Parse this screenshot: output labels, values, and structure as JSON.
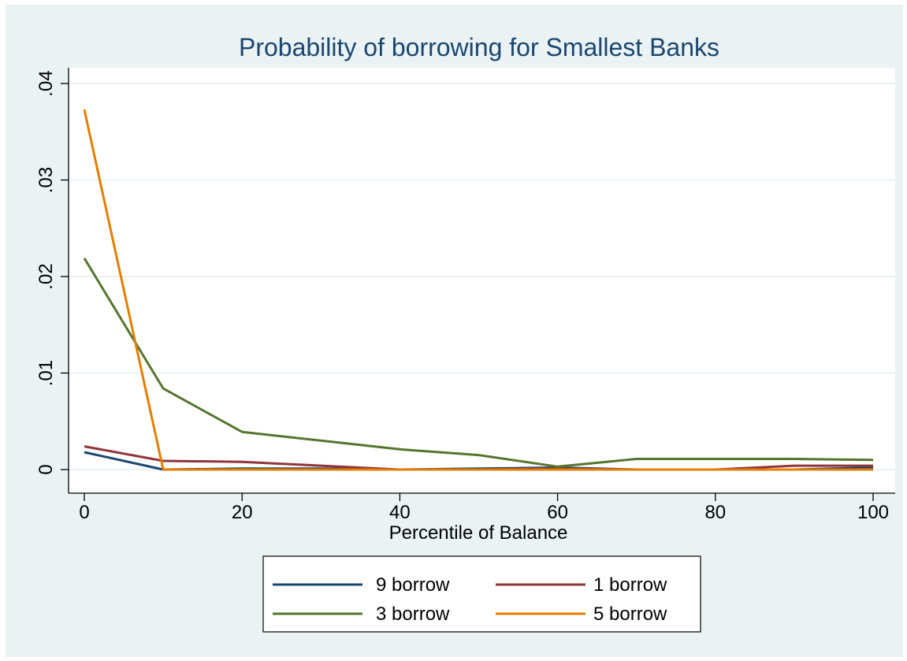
{
  "chart_data": {
    "type": "line",
    "title": "Probability of borrowing for Smallest Banks",
    "xlabel": "Percentile of Balance",
    "ylabel": "",
    "xlim": [
      0,
      100
    ],
    "ylim": [
      0,
      0.04
    ],
    "xticks": [
      0,
      20,
      40,
      60,
      80,
      100
    ],
    "xtick_labels": [
      "0",
      "20",
      "40",
      "60",
      "80",
      "100"
    ],
    "yticks": [
      0,
      0.01,
      0.02,
      0.03,
      0.04
    ],
    "ytick_labels": [
      "0",
      ".01",
      ".02",
      ".03",
      ".04"
    ],
    "grid": true,
    "legend_position": "bottom",
    "x": [
      0,
      10,
      20,
      30,
      40,
      50,
      60,
      70,
      80,
      90,
      100
    ],
    "series": [
      {
        "name": "9 borrow",
        "color": "#1a476f",
        "values": [
          0.0018,
          0.0,
          0.0001,
          0.0001,
          0.0,
          0.0001,
          0.0002,
          0.0,
          0.0,
          0.0,
          0.0002
        ]
      },
      {
        "name": "1 borrow",
        "color": "#90353b",
        "values": [
          0.0024,
          0.0009,
          0.0008,
          0.0004,
          0.0,
          0.0,
          0.0001,
          0.0,
          0.0,
          0.0004,
          0.0004
        ]
      },
      {
        "name": "3 borrow",
        "color": "#55752f",
        "values": [
          0.0219,
          0.0084,
          0.0039,
          0.003,
          0.0021,
          0.0015,
          0.0003,
          0.0011,
          0.0011,
          0.0011,
          0.001
        ]
      },
      {
        "name": "5 borrow",
        "color": "#e37e00",
        "values": [
          0.0373,
          0.0,
          0.0,
          0.0,
          0.0,
          0.0,
          0.0,
          0.0,
          0.0,
          0.0,
          0.0
        ]
      }
    ],
    "colors": {
      "background": "#eaf2f3",
      "plot_background": "#ffffff",
      "grid": "#eaf2f3",
      "title": "#1a476f"
    }
  }
}
